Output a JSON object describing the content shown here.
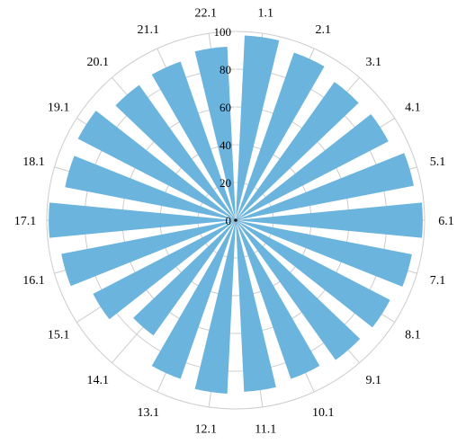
{
  "chart_data": {
    "type": "bar",
    "polar": true,
    "title": "",
    "categories": [
      "1.1",
      "2.1",
      "3.1",
      "4.1",
      "5.1",
      "6.1",
      "7.1",
      "8.1",
      "9.1",
      "10.1",
      "11.1",
      "12.1",
      "13.1",
      "14.1",
      "15.1",
      "16.1",
      "17.1",
      "18.1",
      "19.1",
      "20.1",
      "21.1",
      "22.1"
    ],
    "values": [
      98,
      94,
      90,
      91,
      96,
      99,
      95,
      92,
      91,
      89,
      91,
      92,
      89,
      75,
      85,
      94,
      99,
      92,
      94,
      88,
      89,
      92
    ],
    "rlim": [
      0,
      100
    ],
    "r_ticks": [
      0,
      20,
      40,
      60,
      80,
      100
    ],
    "grid": true,
    "bar_color": "#6ab4de",
    "grid_color": "#cccccc"
  }
}
